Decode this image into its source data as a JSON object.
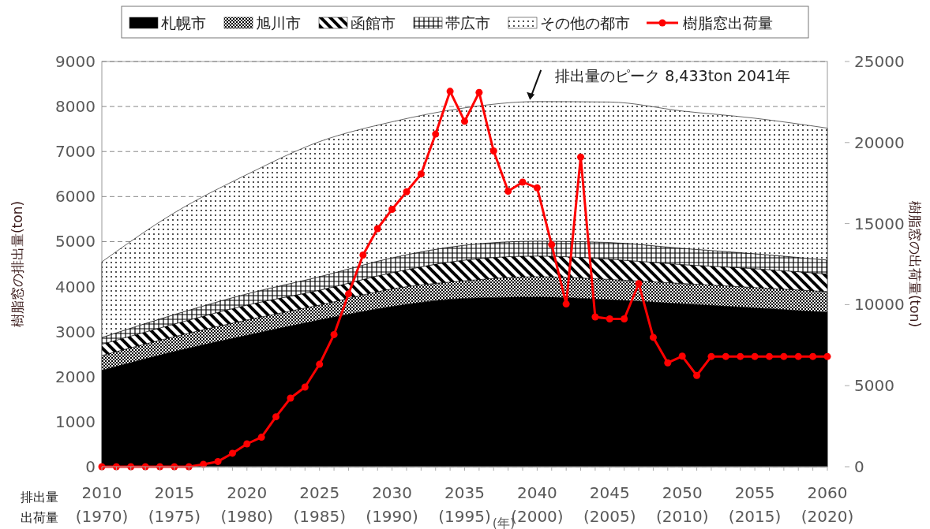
{
  "chart_data": {
    "type": "area",
    "stacked": true,
    "xlabel": "(年)",
    "ylabel": "樹脂窓の排出量(ton)",
    "y2label": "樹脂窓の出荷量(ton)",
    "x": [
      2010,
      2015,
      2020,
      2025,
      2030,
      2035,
      2040,
      2045,
      2050,
      2055,
      2060
    ],
    "series": [
      {
        "name": "札幌市",
        "color": "#000000",
        "values": [
          2140,
          2560,
          2920,
          3260,
          3560,
          3740,
          3770,
          3710,
          3620,
          3530,
          3430
        ]
      },
      {
        "name": "旭川市",
        "color": "#000000",
        "values": [
          330,
          330,
          340,
          330,
          390,
          390,
          450,
          450,
          450,
          450,
          460
        ]
      },
      {
        "name": "函館市",
        "color": "#000000",
        "values": [
          250,
          280,
          330,
          330,
          360,
          460,
          460,
          450,
          420,
          420,
          390
        ]
      },
      {
        "name": "帯広市",
        "color": "#000000",
        "values": [
          150,
          210,
          250,
          300,
          330,
          330,
          330,
          370,
          360,
          330,
          310
        ]
      },
      {
        "name": "その他の都市",
        "color": "#000000",
        "values": [
          1680,
          2260,
          2650,
          3000,
          3020,
          3050,
          3100,
          3120,
          3050,
          3010,
          2930
        ]
      },
      {
        "name": "樹脂窓出荷量",
        "type": "line",
        "axis": "y2",
        "color": "#ff0000",
        "marker": "circle",
        "x": [
          2010,
          2011,
          2012,
          2013,
          2014,
          2015,
          2016,
          2017,
          2018,
          2019,
          2020,
          2021,
          2022,
          2023,
          2024,
          2025,
          2026,
          2027,
          2028,
          2029,
          2030,
          2031,
          2032,
          2033,
          2034,
          2035,
          2036,
          2037,
          2038,
          2039,
          2040,
          2041,
          2042,
          2043,
          2044,
          2045,
          2046,
          2047,
          2048,
          2049,
          2050,
          2051,
          2052,
          2053,
          2054,
          2055,
          2056,
          2057,
          2058,
          2059,
          2060
        ],
        "values": [
          0,
          0,
          0,
          0,
          0,
          0,
          0,
          150,
          320,
          830,
          1410,
          1820,
          3080,
          4230,
          4910,
          6320,
          8150,
          10660,
          13060,
          14690,
          15880,
          16960,
          18060,
          20520,
          23160,
          21310,
          23090,
          19480,
          17000,
          17560,
          17200,
          13700,
          10040,
          19100,
          9240,
          9120,
          9120,
          11300,
          7980,
          6410,
          6820,
          5630,
          6800,
          6800,
          6800,
          6800,
          6800,
          6800,
          6800,
          6800,
          6800
        ]
      }
    ],
    "xlim": [
      2010,
      2060
    ],
    "x2lim": [
      1970,
      2020
    ],
    "x2ticks": [
      {
        "value": 1970,
        "label": "(1970)"
      },
      {
        "value": 1975,
        "label": "(1975)"
      },
      {
        "value": 1980,
        "label": "(1980)"
      },
      {
        "value": 1985,
        "label": "(1985)"
      },
      {
        "value": 1990,
        "label": "(1990)"
      },
      {
        "value": 1995,
        "label": "(1995)"
      },
      {
        "value": 2000,
        "label": "(2000)"
      },
      {
        "value": 2005,
        "label": "(2005)"
      },
      {
        "value": 2010,
        "label": "(2010)"
      },
      {
        "value": 2015,
        "label": "(2015)"
      },
      {
        "value": 2020,
        "label": "(2020)"
      }
    ],
    "xticks": [
      2010,
      {
        "value": 2011,
        "label": null
      },
      {
        "value": 2012,
        "label": null
      },
      {
        "value": 2013,
        "label": null
      },
      {
        "value": 2014,
        "label": null
      },
      2015,
      {
        "value": 2016,
        "label": null
      },
      {
        "value": 2017,
        "label": null
      },
      {
        "value": 2018,
        "label": null
      },
      {
        "value": 2019,
        "label": null
      },
      2020,
      {
        "value": 2021,
        "label": null
      },
      {
        "value": 2022,
        "label": null
      },
      {
        "value": 2023,
        "label": null
      },
      {
        "value": 2024,
        "label": null
      },
      2025,
      {
        "value": 2026,
        "label": null
      },
      {
        "value": 2027,
        "label": null
      },
      {
        "value": 2028,
        "label": null
      },
      {
        "value": 2029,
        "label": null
      },
      2030,
      {
        "value": 2031,
        "label": null
      },
      {
        "value": 2032,
        "label": null
      },
      {
        "value": 2033,
        "label": null
      },
      {
        "value": 2034,
        "label": null
      },
      2035,
      {
        "value": 2036,
        "label": null
      },
      {
        "value": 2037,
        "label": null
      },
      {
        "value": 2038,
        "label": null
      },
      {
        "value": 2039,
        "label": null
      },
      2040,
      {
        "value": 2041,
        "label": null
      },
      {
        "value": 2042,
        "label": null
      },
      {
        "value": 2043,
        "label": null
      },
      {
        "value": 2044,
        "label": null
      },
      2045,
      {
        "value": 2046,
        "label": null
      },
      {
        "value": 2047,
        "label": null
      },
      {
        "value": 2048,
        "label": null
      },
      {
        "value": 2049,
        "label": null
      },
      2050,
      {
        "value": 2051,
        "label": null
      },
      {
        "value": 2052,
        "label": null
      },
      {
        "value": 2053,
        "label": null
      },
      {
        "value": 2054,
        "label": null
      },
      2055,
      {
        "value": 2056,
        "label": null
      },
      {
        "value": 2057,
        "label": null
      },
      {
        "value": 2058,
        "label": null
      },
      {
        "value": 2059,
        "label": null
      },
      2060
    ],
    "ylim": [
      0,
      9000
    ],
    "yticks": [
      0,
      1000,
      2000,
      3000,
      4000,
      5000,
      6000,
      7000,
      8000,
      9000
    ],
    "y2lim": [
      0,
      25000
    ],
    "y2ticks": [
      0,
      5000,
      10000,
      15000,
      20000,
      25000
    ],
    "grid": "y",
    "legend": "top",
    "annotations": [
      {
        "text": "排出量のピーク 8,433ton 2041年",
        "x": 2039.5,
        "y": 8110
      },
      "排出量",
      "出荷量"
    ]
  }
}
